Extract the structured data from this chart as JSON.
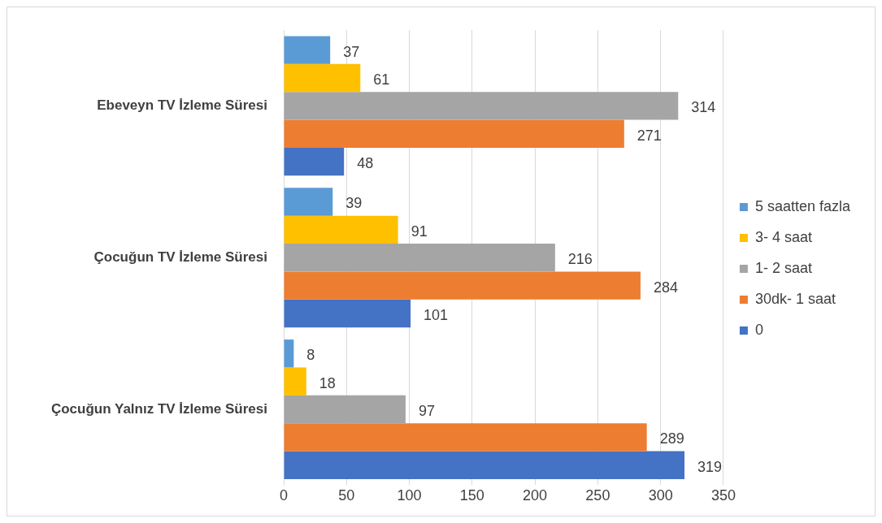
{
  "chart_data": {
    "type": "bar",
    "orientation": "horizontal",
    "categories": [
      "Ebeveyn TV İzleme Süresi",
      "Çocuğun TV İzleme Süresi",
      "Çocuğun Yalnız TV İzleme Süresi"
    ],
    "series": [
      {
        "name": "5 saatten fazla",
        "color": "#5b9bd5",
        "values": [
          37,
          39,
          8
        ]
      },
      {
        "name": "3- 4 saat",
        "color": "#ffc000",
        "values": [
          61,
          91,
          18
        ]
      },
      {
        "name": "1- 2 saat",
        "color": "#a5a5a5",
        "values": [
          314,
          216,
          97
        ]
      },
      {
        "name": "30dk- 1 saat",
        "color": "#ed7d31",
        "values": [
          271,
          284,
          289
        ]
      },
      {
        "name": "0",
        "color": "#4472c4",
        "values": [
          48,
          101,
          319
        ]
      }
    ],
    "xlim": [
      0,
      350
    ],
    "xticks": [
      0,
      50,
      100,
      150,
      200,
      250,
      300,
      350
    ],
    "grid": "x",
    "legend": "right",
    "data_labels": true
  }
}
